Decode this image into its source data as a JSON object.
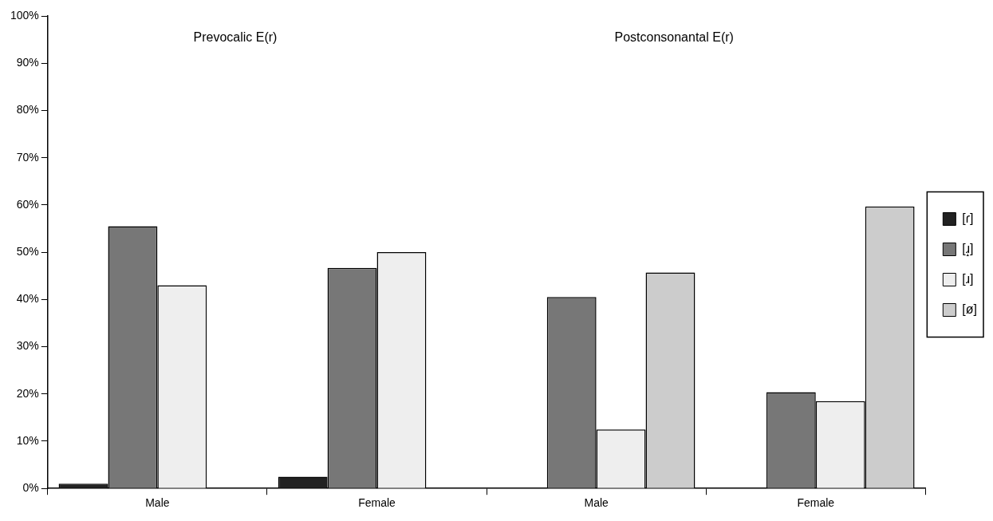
{
  "chart_data": {
    "type": "bar",
    "categories": [
      "Male",
      "Female",
      "Male",
      "Female"
    ],
    "series": [
      {
        "name": "[ɾ]",
        "color": "#222222",
        "values": [
          1,
          2.5,
          null,
          null
        ]
      },
      {
        "name": "[ɹ̝]",
        "color": "#777777",
        "values": [
          55.5,
          46.7,
          40.5,
          20.4
        ]
      },
      {
        "name": "[ɹ]",
        "color": "#eeeeee",
        "values": [
          43,
          50,
          12.5,
          18.5
        ]
      },
      {
        "name": "[ø]",
        "color": "#cccccc",
        "values": [
          null,
          null,
          45.7,
          59.7
        ]
      }
    ],
    "ylim": [
      0,
      100
    ],
    "yticks": [
      {
        "value": 0,
        "label": "0%"
      },
      {
        "value": 10,
        "label": "10%"
      },
      {
        "value": 20,
        "label": "20%"
      },
      {
        "value": 30,
        "label": "30%"
      },
      {
        "value": 40,
        "label": "40%"
      },
      {
        "value": 50,
        "label": "50%"
      },
      {
        "value": 60,
        "label": "60%"
      },
      {
        "value": 70,
        "label": "70%"
      },
      {
        "value": 80,
        "label": "80%"
      },
      {
        "value": 90,
        "label": "90%"
      },
      {
        "value": 100,
        "label": "100%"
      }
    ],
    "annotations": [
      "Prevocalic E(r)",
      "Postconsonantal E(r)"
    ],
    "grid": false,
    "legend": "right"
  }
}
